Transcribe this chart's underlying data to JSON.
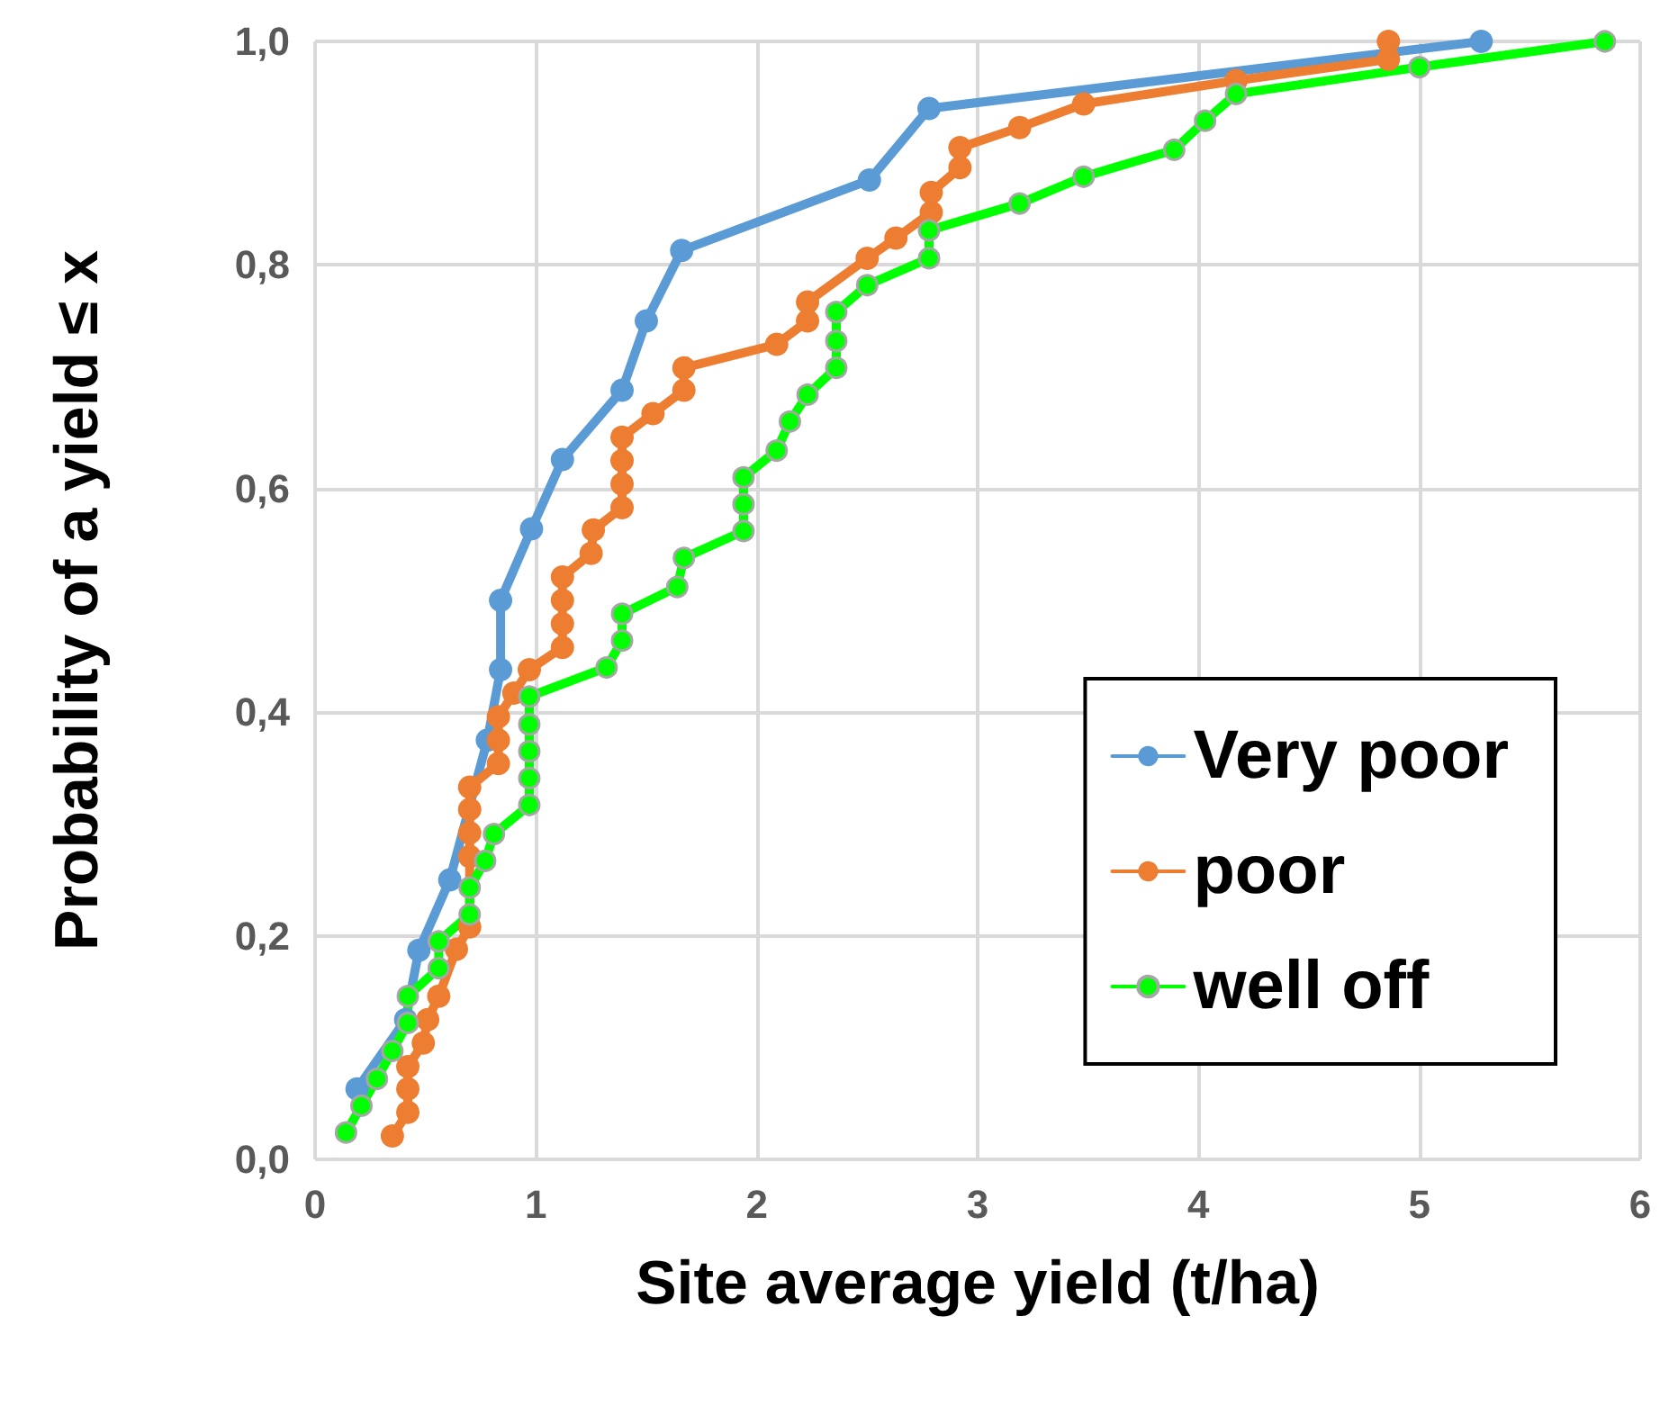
{
  "chart_data": {
    "type": "line",
    "xlabel": "Site average yield (t/ha)",
    "ylabel": "Probability of a yield ≤ x",
    "xlim": [
      0,
      6
    ],
    "xticks": [
      0,
      1,
      2,
      3,
      4,
      5,
      6
    ],
    "ylim": [
      0,
      1
    ],
    "yticks": [
      {
        "value": 0,
        "label": "0,0"
      },
      {
        "value": 0.2,
        "label": "0,2"
      },
      {
        "value": 0.4,
        "label": "0,4"
      },
      {
        "value": 0.6,
        "label": "0,6"
      },
      {
        "value": 0.8,
        "label": "0,8"
      },
      {
        "value": 1,
        "label": "1,0"
      }
    ],
    "grid": true,
    "legend": "bottom right",
    "marker": "circle",
    "line_style": "solid",
    "series": [
      {
        "name": "Very poor",
        "color": "#5b9bd5",
        "x": [
          0.19,
          0.41,
          0.47,
          0.61,
          null,
          0.78,
          0.84,
          0.84,
          0.98,
          1.12,
          1.39,
          1.5,
          1.66,
          2.51,
          2.78,
          5.28
        ],
        "values": [
          0.063,
          0.125,
          0.187,
          0.25,
          null,
          0.375,
          0.438,
          0.5,
          0.564,
          0.626,
          0.688,
          0.75,
          0.813,
          0.876,
          0.94,
          1.0
        ]
      },
      {
        "name": "poor",
        "color": "#ed7d31",
        "x": [
          0.35,
          0.42,
          0.42,
          0.42,
          0.49,
          0.51,
          0.56,
          null,
          0.64,
          0.7,
          null,
          null,
          0.7,
          0.7,
          0.7,
          0.7,
          0.83,
          0.83,
          0.83,
          0.9,
          0.97,
          1.12,
          1.12,
          1.12,
          1.12,
          1.25,
          1.26,
          1.39,
          1.39,
          1.39,
          1.39,
          1.53,
          1.67,
          1.67,
          2.09,
          2.23,
          2.23,
          2.5,
          2.63,
          2.79,
          2.79,
          2.92,
          2.92,
          3.19,
          3.48,
          4.17,
          4.86,
          4.86
        ],
        "values": [
          0.021,
          0.042,
          0.063,
          0.083,
          0.104,
          0.125,
          0.146,
          null,
          0.188,
          0.208,
          null,
          null,
          0.271,
          0.292,
          0.313,
          0.333,
          0.354,
          0.375,
          0.396,
          0.417,
          0.438,
          0.458,
          0.479,
          0.5,
          0.521,
          0.542,
          0.563,
          0.583,
          0.604,
          0.625,
          0.646,
          0.667,
          0.688,
          0.708,
          0.729,
          0.75,
          0.767,
          0.806,
          0.824,
          0.847,
          0.865,
          0.887,
          0.905,
          0.923,
          0.944,
          0.965,
          0.984,
          1.0
        ]
      },
      {
        "name": "well off",
        "color": "#00ff00",
        "x": [
          0.14,
          0.21,
          0.28,
          0.35,
          0.42,
          0.42,
          0.56,
          0.56,
          0.7,
          0.7,
          0.77,
          0.81,
          0.97,
          0.97,
          0.97,
          0.97,
          0.97,
          1.32,
          1.39,
          1.39,
          1.64,
          1.67,
          1.94,
          1.94,
          1.94,
          2.09,
          2.15,
          2.23,
          2.36,
          2.36,
          2.36,
          2.5,
          2.78,
          2.78,
          3.19,
          3.48,
          3.89,
          4.03,
          4.17,
          5.0,
          5.84
        ],
        "values": [
          0.024,
          0.048,
          0.072,
          0.097,
          0.122,
          0.146,
          0.171,
          0.195,
          0.219,
          0.243,
          0.267,
          0.291,
          0.317,
          0.341,
          0.365,
          0.389,
          0.414,
          0.44,
          0.464,
          0.488,
          0.512,
          0.538,
          0.562,
          0.586,
          0.61,
          0.634,
          0.66,
          0.684,
          0.708,
          0.732,
          0.758,
          0.782,
          0.806,
          0.831,
          0.855,
          0.879,
          0.903,
          0.929,
          0.953,
          0.977,
          1.0
        ]
      }
    ]
  }
}
